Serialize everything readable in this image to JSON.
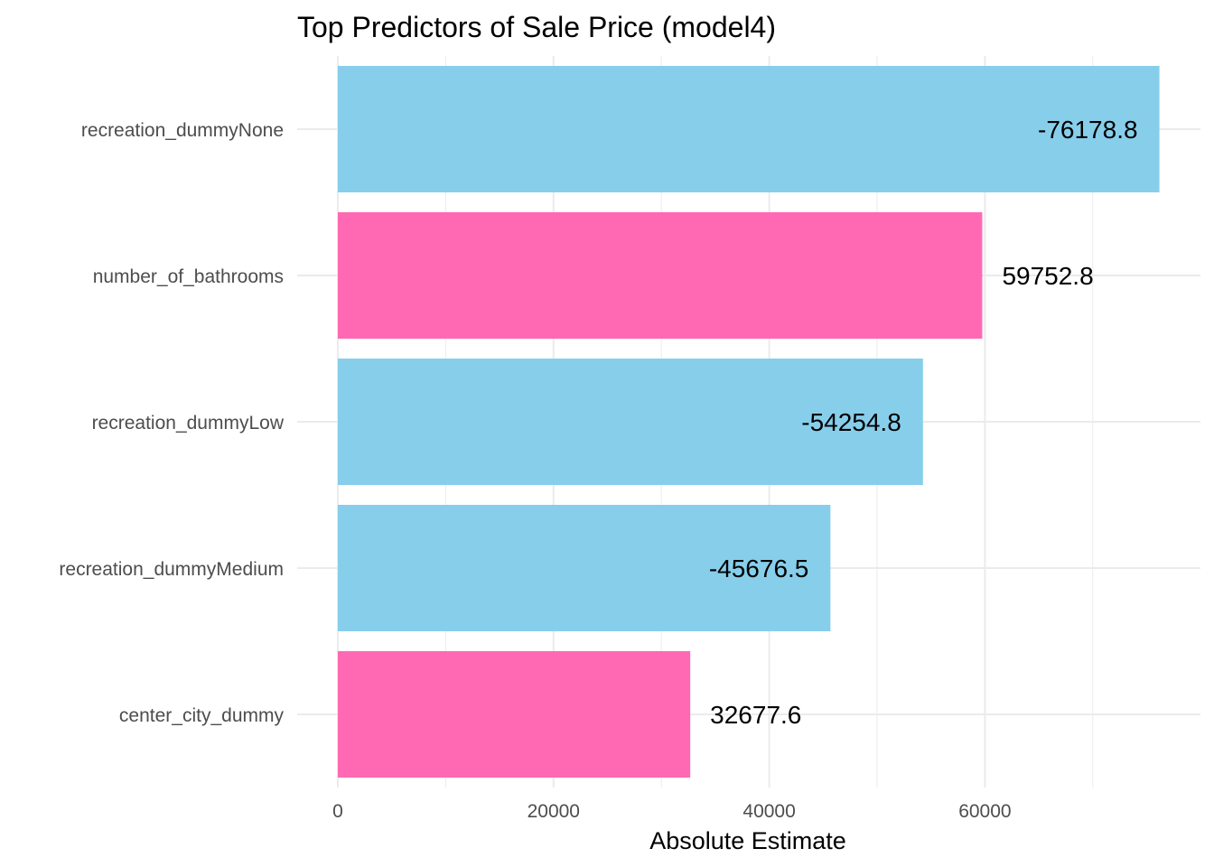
{
  "chart_data": {
    "type": "bar",
    "orientation": "horizontal",
    "title": "Top Predictors of Sale Price (model4)",
    "xlabel": "Absolute Estimate",
    "ylabel": "",
    "xlim": [
      0,
      80000
    ],
    "x_ticks": [
      0,
      20000,
      40000,
      60000
    ],
    "x_tick_labels": [
      "0",
      "20000",
      "40000",
      "60000"
    ],
    "grid": true,
    "legend": "none",
    "categories": [
      "recreation_dummyNone",
      "number_of_bathrooms",
      "recreation_dummyLow",
      "recreation_dummyMedium",
      "center_city_dummy"
    ],
    "values": [
      76178.8,
      59752.8,
      54254.8,
      45676.5,
      32677.6
    ],
    "labels": [
      "-76178.8",
      "59752.8",
      "-54254.8",
      "-45676.5",
      "32677.6"
    ],
    "signs": [
      "negative",
      "positive",
      "negative",
      "negative",
      "positive"
    ],
    "colors": {
      "negative": "#87CEEB",
      "positive": "#FF69B4"
    }
  }
}
